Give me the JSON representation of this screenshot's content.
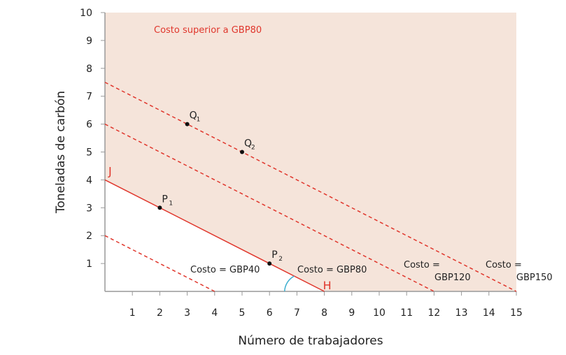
{
  "chart_data": {
    "type": "line",
    "xlabel": "Número de trabajadores",
    "ylabel": "Toneladas de carbón",
    "xlim": [
      0,
      15
    ],
    "ylim": [
      0,
      10
    ],
    "xticks": [
      1,
      2,
      3,
      4,
      5,
      6,
      7,
      8,
      9,
      10,
      11,
      12,
      13,
      14,
      15
    ],
    "yticks": [
      1,
      2,
      3,
      4,
      5,
      6,
      7,
      8,
      9,
      10
    ],
    "grid": false,
    "shaded_region": {
      "label": "Costo superior a GBP80",
      "color": "#f5e4da",
      "above_line": "Costo = GBP80"
    },
    "series": [
      {
        "name": "Costo = GBP40",
        "label_lines": [
          "Costo = GBP40"
        ],
        "x": [
          0,
          4
        ],
        "y": [
          2,
          0
        ],
        "style": "dashed",
        "color": "#e0362c"
      },
      {
        "name": "Costo = GBP80",
        "label_lines": [
          "Costo = GBP80"
        ],
        "x": [
          0,
          8
        ],
        "y": [
          4,
          0
        ],
        "style": "solid",
        "color": "#e0362c"
      },
      {
        "name": "Costo = GBP120",
        "label_lines": [
          "Costo =",
          "GBP120"
        ],
        "x": [
          0,
          12
        ],
        "y": [
          6,
          0
        ],
        "style": "dashed",
        "color": "#e0362c"
      },
      {
        "name": "Costo = GBP150",
        "label_lines": [
          "Costo =",
          "GBP150"
        ],
        "x": [
          0,
          15
        ],
        "y": [
          7.5,
          0
        ],
        "style": "dashed",
        "color": "#e0362c"
      }
    ],
    "points": [
      {
        "label": "P",
        "sub": "1",
        "x": 2,
        "y": 3
      },
      {
        "label": "P",
        "sub": "2",
        "x": 6,
        "y": 1
      },
      {
        "label": "Q",
        "sub": "1",
        "x": 3,
        "y": 6
      },
      {
        "label": "Q",
        "sub": "2",
        "x": 5,
        "y": 5
      }
    ],
    "annotations": [
      {
        "text": "J",
        "x": 0,
        "y": 4,
        "color": "#e0362c"
      },
      {
        "text": "H",
        "x": 8,
        "y": 0,
        "color": "#e0362c"
      }
    ],
    "angle_marker_color": "#3fb0d0"
  }
}
